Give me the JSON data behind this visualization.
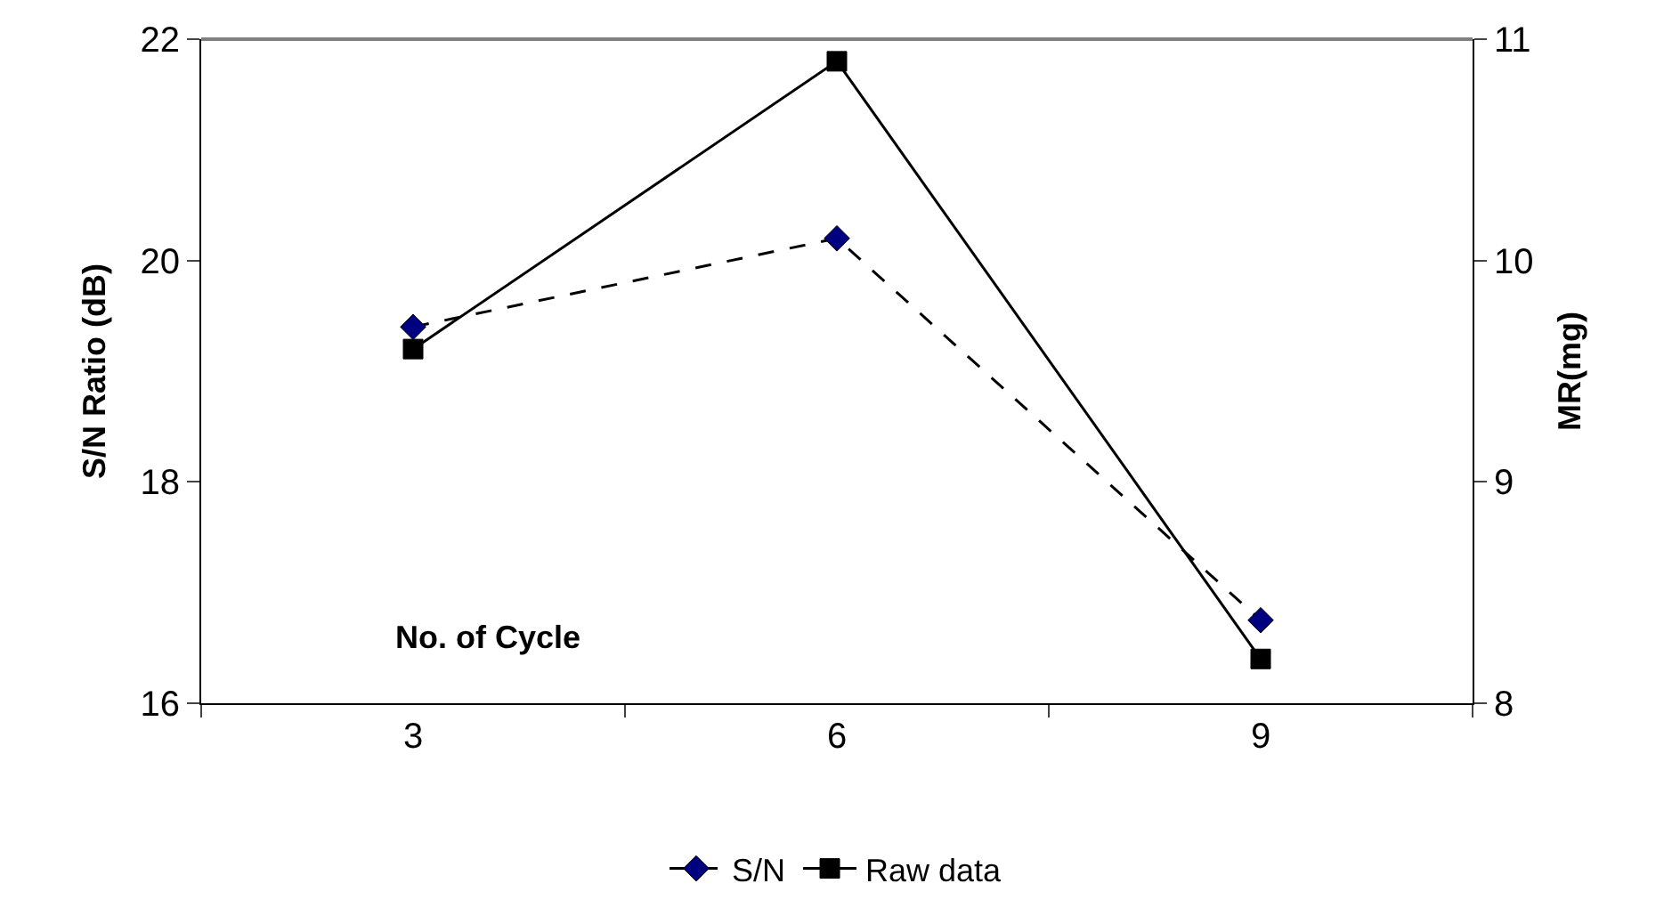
{
  "chart_data": {
    "type": "line",
    "xlabel": "No. of Cycle",
    "ylabel": "S/N Ratio (dB)",
    "y2label": "MR(mg)",
    "categories": [
      "3",
      "6",
      "9"
    ],
    "series": [
      {
        "name": "S/N",
        "color": "#000080",
        "values": [
          19.4,
          20.2,
          16.75
        ],
        "marker": "diamond",
        "line_style": "dashed"
      },
      {
        "name": "Raw data",
        "color": "#000000",
        "values": [
          9.6,
          10.9,
          8.2
        ],
        "axis": "y2",
        "marker": "square",
        "line_style": "solid"
      }
    ],
    "ylim": [
      16,
      22
    ],
    "yticks": [
      16,
      18,
      20,
      22
    ],
    "y2lim": [
      8,
      11
    ],
    "y2ticks": [
      8,
      9,
      10,
      11
    ],
    "grid": false,
    "legend": "bottom"
  }
}
